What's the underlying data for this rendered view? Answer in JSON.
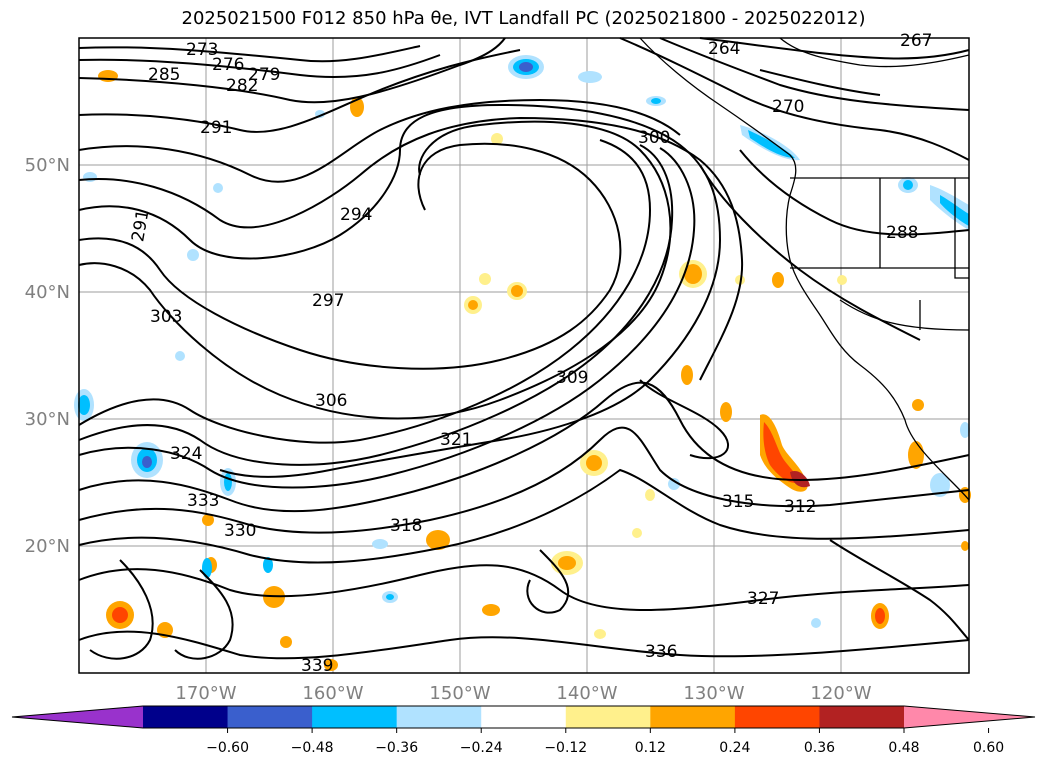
{
  "title": "2025021500 F012 850 hPa θe, IVT Landfall PC (2025021800 - 2025022012)",
  "axes": {
    "lon_ticks": [
      "170°W",
      "160°W",
      "150°W",
      "140°W",
      "130°W",
      "120°W"
    ],
    "lat_ticks": [
      "50°N",
      "40°N",
      "30°N",
      "20°N"
    ]
  },
  "contour_labels": [
    "273",
    "276",
    "279",
    "282",
    "285",
    "288",
    "291",
    "294",
    "297",
    "300",
    "303",
    "306",
    "309",
    "312",
    "315",
    "318",
    "321",
    "324",
    "327",
    "330",
    "333",
    "336",
    "339",
    "264",
    "267",
    "270",
    "291"
  ],
  "colorbar": {
    "colors": [
      "#9932cc",
      "#00008b",
      "#3a5fcd",
      "#00bfff",
      "#b0e2ff",
      "#ffffff",
      "#fff08c",
      "#ffa500",
      "#ff4500",
      "#b22222",
      "#ff88aa"
    ],
    "tick_labels": [
      "−0.60",
      "−0.48",
      "−0.36",
      "−0.24",
      "−0.12",
      "0.12",
      "0.24",
      "0.36",
      "0.48",
      "0.60"
    ]
  }
}
